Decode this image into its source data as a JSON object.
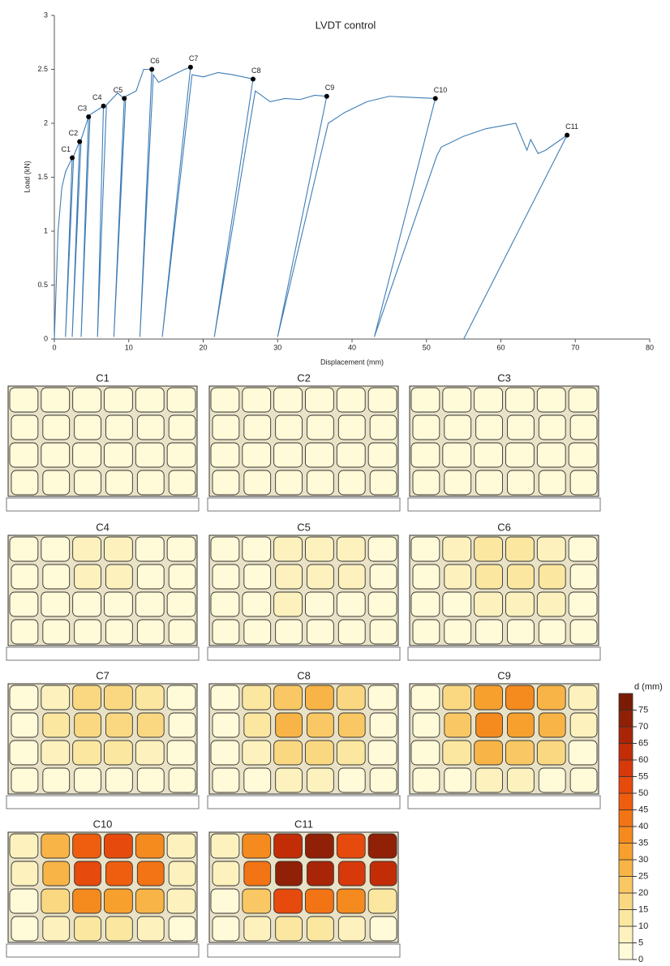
{
  "chart_data": {
    "type": "line",
    "title": "LVDT control",
    "xlabel": "Displacement (mm)",
    "ylabel": "Load (kN)",
    "xlim": [
      0,
      80
    ],
    "xticks": [
      0,
      10,
      20,
      30,
      40,
      50,
      60,
      70,
      80
    ],
    "ylim": [
      0,
      3
    ],
    "yticks": [
      0,
      0.5,
      1,
      1.5,
      2,
      2.5,
      3
    ],
    "series": [
      {
        "color": "#3f7db5",
        "x": [
          0,
          0.5,
          1,
          1.5,
          2.4,
          1.5,
          2.6,
          3.4,
          2.4,
          3.6,
          4.6,
          3.6,
          4.8,
          6.6,
          5.8,
          7,
          8.5,
          9.4,
          8,
          9.6,
          11,
          12,
          13.1,
          11.5,
          13.3,
          14,
          16,
          17.5,
          18.3,
          14.5,
          18.5,
          20,
          22,
          24,
          26.7,
          21.5,
          27,
          29,
          31,
          33,
          35,
          36.6,
          30,
          36.8,
          39,
          42,
          45,
          48,
          51.2,
          43,
          51.4,
          52,
          55,
          58,
          62,
          63.5,
          64,
          65,
          66,
          68.9,
          55
        ],
        "values": [
          0,
          1,
          1.4,
          1.55,
          1.68,
          0.02,
          1.7,
          1.83,
          0.02,
          1.85,
          2.06,
          0.02,
          2.08,
          2.16,
          0.02,
          2.17,
          2.28,
          2.23,
          0.02,
          2.25,
          2.3,
          2.5,
          2.5,
          0.02,
          2.45,
          2.38,
          2.45,
          2.5,
          2.52,
          0.02,
          2.45,
          2.43,
          2.47,
          2.45,
          2.41,
          0.02,
          2.3,
          2.2,
          2.23,
          2.22,
          2.26,
          2.25,
          0.02,
          2.0,
          2.1,
          2.2,
          2.25,
          2.24,
          2.23,
          0.02,
          1.7,
          1.78,
          1.88,
          1.95,
          2.0,
          1.75,
          1.85,
          1.72,
          1.75,
          1.89,
          0
        ]
      }
    ],
    "points": [
      {
        "label": "C1",
        "x": 2.4,
        "y": 1.68
      },
      {
        "label": "C2",
        "x": 3.4,
        "y": 1.83
      },
      {
        "label": "C3",
        "x": 4.6,
        "y": 2.06
      },
      {
        "label": "C4",
        "x": 6.6,
        "y": 2.16
      },
      {
        "label": "C5",
        "x": 9.4,
        "y": 2.23
      },
      {
        "label": "C6",
        "x": 13.1,
        "y": 2.5
      },
      {
        "label": "C7",
        "x": 18.3,
        "y": 2.52
      },
      {
        "label": "C8",
        "x": 26.7,
        "y": 2.41
      },
      {
        "label": "C9",
        "x": 36.6,
        "y": 2.25
      },
      {
        "label": "C10",
        "x": 51.2,
        "y": 2.23
      },
      {
        "label": "C11",
        "x": 68.9,
        "y": 1.89
      }
    ]
  },
  "panels": [
    {
      "label": "C1",
      "d": [
        [
          1,
          2,
          3,
          3,
          2,
          1
        ],
        [
          1,
          2,
          3,
          3,
          2,
          1
        ],
        [
          1,
          1,
          2,
          2,
          1,
          1
        ],
        [
          0,
          1,
          1,
          1,
          1,
          0
        ]
      ]
    },
    {
      "label": "C2",
      "d": [
        [
          1,
          2,
          3,
          3,
          2,
          1
        ],
        [
          1,
          2,
          3,
          3,
          2,
          1
        ],
        [
          1,
          1,
          2,
          2,
          1,
          1
        ],
        [
          0,
          1,
          1,
          1,
          1,
          0
        ]
      ]
    },
    {
      "label": "C3",
      "d": [
        [
          1,
          2,
          4,
          4,
          3,
          1
        ],
        [
          1,
          2,
          4,
          4,
          3,
          1
        ],
        [
          1,
          1,
          3,
          2,
          2,
          1
        ],
        [
          0,
          1,
          1,
          1,
          1,
          0
        ]
      ]
    },
    {
      "label": "C4",
      "d": [
        [
          1,
          3,
          5,
          6,
          4,
          1
        ],
        [
          1,
          3,
          6,
          5,
          4,
          1
        ],
        [
          1,
          2,
          4,
          3,
          3,
          1
        ],
        [
          0,
          1,
          1,
          1,
          1,
          0
        ]
      ]
    },
    {
      "label": "C5",
      "d": [
        [
          1,
          4,
          7,
          8,
          5,
          1
        ],
        [
          1,
          4,
          8,
          7,
          6,
          1
        ],
        [
          1,
          2,
          5,
          4,
          4,
          1
        ],
        [
          0,
          1,
          2,
          2,
          1,
          0
        ]
      ]
    },
    {
      "label": "C6",
      "d": [
        [
          1,
          6,
          11,
          13,
          9,
          2
        ],
        [
          1,
          7,
          13,
          12,
          10,
          2
        ],
        [
          1,
          4,
          9,
          8,
          6,
          1
        ],
        [
          0,
          1,
          3,
          3,
          1,
          0
        ]
      ]
    },
    {
      "label": "C7",
      "d": [
        [
          2,
          9,
          16,
          19,
          13,
          3
        ],
        [
          2,
          10,
          19,
          17,
          15,
          3
        ],
        [
          1,
          6,
          13,
          11,
          9,
          2
        ],
        [
          0,
          2,
          4,
          4,
          2,
          0
        ]
      ]
    },
    {
      "label": "C8",
      "d": [
        [
          3,
          12,
          22,
          26,
          18,
          4
        ],
        [
          3,
          14,
          26,
          23,
          21,
          4
        ],
        [
          1,
          8,
          18,
          16,
          13,
          2
        ],
        [
          1,
          3,
          5,
          5,
          3,
          1
        ]
      ]
    },
    {
      "label": "C9",
      "d": [
        [
          3,
          17,
          31,
          36,
          26,
          5
        ],
        [
          3,
          20,
          36,
          32,
          29,
          5
        ],
        [
          2,
          11,
          25,
          22,
          18,
          3
        ],
        [
          1,
          4,
          7,
          7,
          4,
          1
        ]
      ]
    },
    {
      "label": "C10",
      "d": [
        [
          5,
          25,
          45,
          51,
          37,
          8
        ],
        [
          5,
          28,
          51,
          46,
          41,
          8
        ],
        [
          3,
          15,
          36,
          31,
          26,
          5
        ],
        [
          1,
          5,
          10,
          10,
          5,
          1
        ]
      ]
    },
    {
      "label": "C11",
      "d": [
        [
          7,
          36,
          63,
          72,
          52,
          70
        ],
        [
          7,
          40,
          72,
          65,
          58,
          60
        ],
        [
          4,
          22,
          50,
          44,
          36,
          10
        ],
        [
          1,
          7,
          14,
          14,
          7,
          1
        ]
      ]
    }
  ],
  "colorbar": {
    "label": "d (mm)",
    "ticks": [
      0,
      5,
      10,
      15,
      20,
      25,
      30,
      35,
      40,
      45,
      50,
      55,
      60,
      65,
      70,
      75
    ],
    "colors": [
      "#fffbd9",
      "#fdf2be",
      "#fbe7a0",
      "#fad882",
      "#f9c864",
      "#f8b446",
      "#f7a02e",
      "#f58a1e",
      "#f37414",
      "#ee5e0e",
      "#e64a0c",
      "#d8390a",
      "#c22d08",
      "#a92507",
      "#902006",
      "#7a1c05"
    ]
  }
}
